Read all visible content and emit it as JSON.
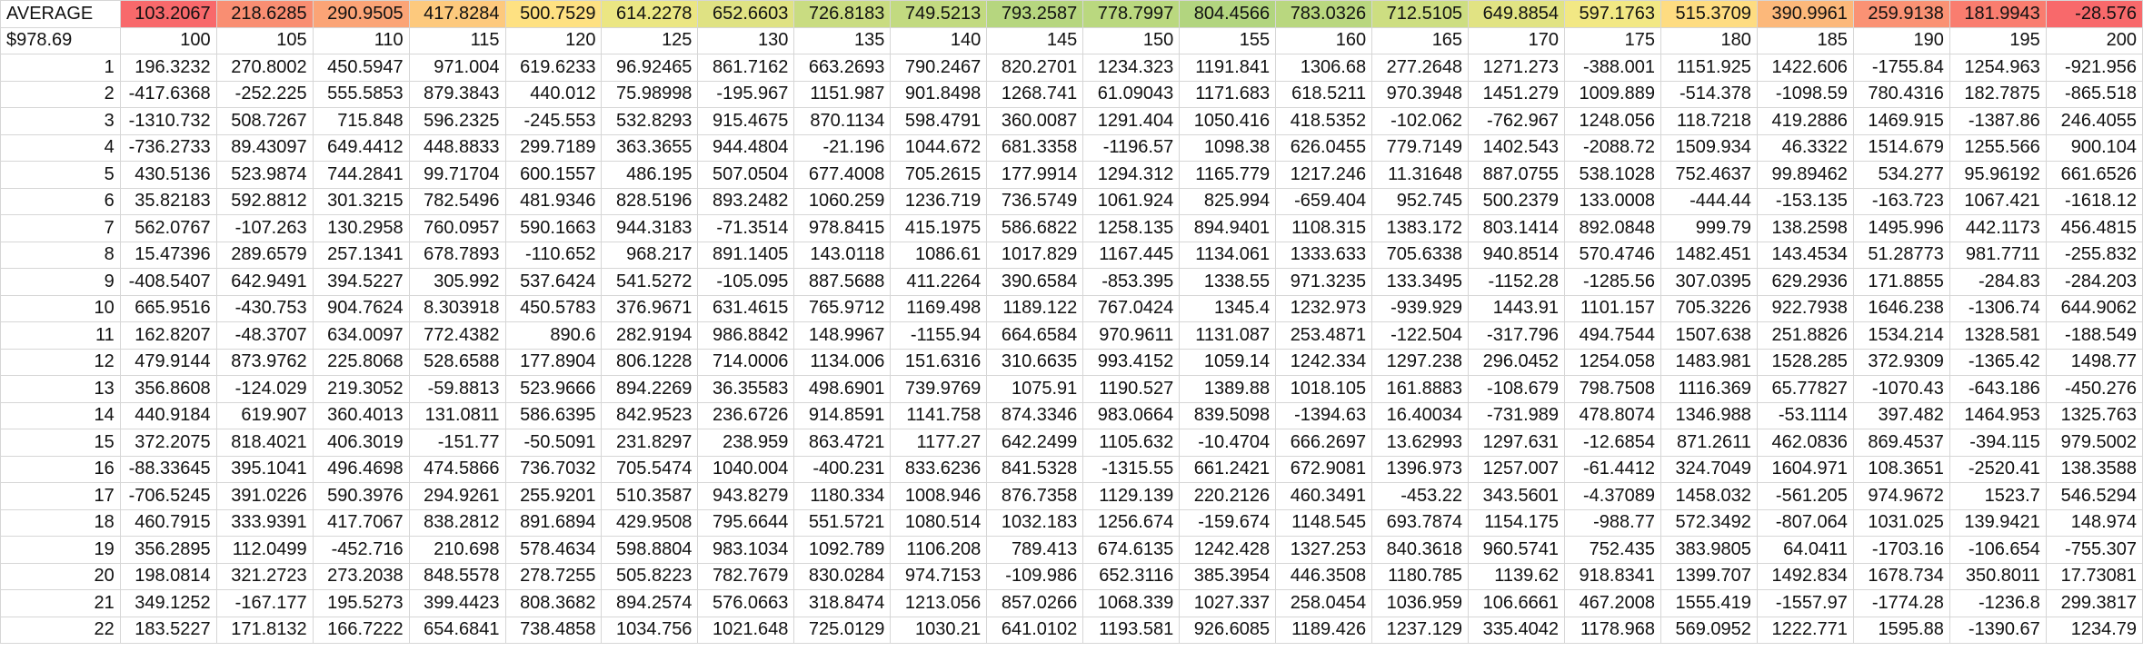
{
  "sheet": {
    "average_label": "AVERAGE",
    "average_values": [
      "103.2067",
      "218.6285",
      "290.9505",
      "417.8284",
      "500.7529",
      "614.2278",
      "652.6603",
      "726.8183",
      "749.5213",
      "793.2587",
      "778.7997",
      "804.4566",
      "783.0326",
      "712.5105",
      "649.8854",
      "597.1763",
      "515.3709",
      "390.9961",
      "259.9138",
      "181.9943",
      "-28.576"
    ],
    "average_colors": [
      "#f8696b",
      "#f98e72",
      "#fba476",
      "#fdc97d",
      "#fee182",
      "#ebe683",
      "#dfe283",
      "#c9dc81",
      "#c2da80",
      "#b6d67f",
      "#bad87f",
      "#b2d57f",
      "#b9d77f",
      "#cdde81",
      "#e1e383",
      "#f2e884",
      "#fedc81",
      "#fcb87a",
      "#fa9274",
      "#f97d6f",
      "#f8696b"
    ],
    "header_label": "$978.69",
    "header_values": [
      "100",
      "105",
      "110",
      "115",
      "120",
      "125",
      "130",
      "135",
      "140",
      "145",
      "150",
      "155",
      "160",
      "165",
      "170",
      "175",
      "180",
      "185",
      "190",
      "195",
      "200"
    ],
    "rows": [
      {
        "id": "1",
        "cells": [
          "196.3232",
          "270.8002",
          "450.5947",
          "971.004",
          "619.6233",
          "96.92465",
          "861.7162",
          "663.2693",
          "790.2467",
          "820.2701",
          "1234.323",
          "1191.841",
          "1306.68",
          "277.2648",
          "1271.273",
          "-388.001",
          "1151.925",
          "1422.606",
          "-1755.84",
          "1254.963",
          "-921.956"
        ]
      },
      {
        "id": "2",
        "cells": [
          "-417.6368",
          "-252.225",
          "555.5853",
          "879.3843",
          "440.012",
          "75.98998",
          "-195.967",
          "1151.987",
          "901.8498",
          "1268.741",
          "61.09043",
          "1171.683",
          "618.5211",
          "970.3948",
          "1451.279",
          "1009.889",
          "-514.378",
          "-1098.59",
          "780.4316",
          "182.7875",
          "-865.518"
        ]
      },
      {
        "id": "3",
        "cells": [
          "-1310.732",
          "508.7267",
          "715.848",
          "596.2325",
          "-245.553",
          "532.8293",
          "915.4675",
          "870.1134",
          "598.4791",
          "360.0087",
          "1291.404",
          "1050.416",
          "418.5352",
          "-102.062",
          "-762.967",
          "1248.056",
          "118.7218",
          "419.2886",
          "1469.915",
          "-1387.86",
          "246.4055"
        ]
      },
      {
        "id": "4",
        "cells": [
          "-736.2733",
          "89.43097",
          "649.4412",
          "448.8833",
          "299.7189",
          "363.3655",
          "944.4804",
          "-21.196",
          "1044.672",
          "681.3358",
          "-1196.57",
          "1098.38",
          "626.0455",
          "779.7149",
          "1402.543",
          "-2088.72",
          "1509.934",
          "46.3322",
          "1514.679",
          "1255.566",
          "900.104"
        ]
      },
      {
        "id": "5",
        "cells": [
          "430.5136",
          "523.9874",
          "744.2841",
          "99.71704",
          "600.1557",
          "486.195",
          "507.0504",
          "677.4008",
          "705.2615",
          "177.9914",
          "1294.312",
          "1165.779",
          "1217.246",
          "11.31648",
          "887.0755",
          "538.1028",
          "752.4637",
          "99.89462",
          "534.277",
          "95.96192",
          "661.6526"
        ]
      },
      {
        "id": "6",
        "cells": [
          "35.82183",
          "592.8812",
          "301.3215",
          "782.5496",
          "481.9346",
          "828.5196",
          "893.2482",
          "1060.259",
          "1236.719",
          "736.5749",
          "1061.924",
          "825.994",
          "-659.404",
          "952.745",
          "500.2379",
          "133.0008",
          "-444.44",
          "-153.135",
          "-163.723",
          "1067.421",
          "-1618.12"
        ]
      },
      {
        "id": "7",
        "cells": [
          "562.0767",
          "-107.263",
          "130.2958",
          "760.0957",
          "590.1663",
          "944.3183",
          "-71.3514",
          "978.8415",
          "415.1975",
          "586.6822",
          "1258.135",
          "894.9401",
          "1108.315",
          "1383.172",
          "803.1414",
          "892.0848",
          "999.79",
          "138.2598",
          "1495.996",
          "442.1173",
          "456.4815"
        ]
      },
      {
        "id": "8",
        "cells": [
          "15.47396",
          "289.6579",
          "257.1341",
          "678.7893",
          "-110.652",
          "968.217",
          "891.1405",
          "143.0118",
          "1086.61",
          "1017.829",
          "1167.445",
          "1134.061",
          "1333.633",
          "705.6338",
          "940.8514",
          "570.4746",
          "1482.451",
          "143.4534",
          "51.28773",
          "981.7711",
          "-255.832"
        ]
      },
      {
        "id": "9",
        "cells": [
          "-408.5407",
          "642.9491",
          "394.5227",
          "305.992",
          "537.6424",
          "541.5272",
          "-105.095",
          "887.5688",
          "411.2264",
          "390.6584",
          "-853.395",
          "1338.55",
          "971.3235",
          "133.3495",
          "-1152.28",
          "-1285.56",
          "307.0395",
          "629.2936",
          "171.8855",
          "-284.83",
          "-284.203"
        ]
      },
      {
        "id": "10",
        "cells": [
          "665.9516",
          "-430.753",
          "904.7624",
          "8.303918",
          "450.5783",
          "376.9671",
          "631.4615",
          "765.9712",
          "1169.498",
          "1189.122",
          "767.0424",
          "1345.4",
          "1232.973",
          "-939.929",
          "1443.91",
          "1101.157",
          "705.3226",
          "922.7938",
          "1646.238",
          "-1306.74",
          "644.9062"
        ]
      },
      {
        "id": "11",
        "cells": [
          "162.8207",
          "-48.3707",
          "634.0097",
          "772.4382",
          "890.6",
          "282.9194",
          "986.8842",
          "148.9967",
          "-1155.94",
          "664.6584",
          "970.9611",
          "1131.087",
          "253.4871",
          "-122.504",
          "-317.796",
          "494.7544",
          "1507.638",
          "251.8826",
          "1534.214",
          "1328.581",
          "-188.549"
        ]
      },
      {
        "id": "12",
        "cells": [
          "479.9144",
          "873.9762",
          "225.8068",
          "528.6588",
          "177.8904",
          "806.1228",
          "714.0006",
          "1134.006",
          "151.6316",
          "310.6635",
          "993.4152",
          "1059.14",
          "1242.334",
          "1297.238",
          "296.0452",
          "1254.058",
          "1483.981",
          "1528.285",
          "372.9309",
          "-1365.42",
          "1498.77"
        ]
      },
      {
        "id": "13",
        "cells": [
          "356.8608",
          "-124.029",
          "219.3052",
          "-59.8813",
          "523.9666",
          "894.2269",
          "36.35583",
          "498.6901",
          "739.9769",
          "1075.91",
          "1190.527",
          "1389.88",
          "1018.105",
          "161.8883",
          "-108.679",
          "798.7508",
          "1116.369",
          "65.77827",
          "-1070.43",
          "-643.186",
          "-450.276"
        ]
      },
      {
        "id": "14",
        "cells": [
          "440.9184",
          "619.907",
          "360.4013",
          "131.0811",
          "586.6395",
          "842.9523",
          "236.6726",
          "914.8591",
          "1141.758",
          "874.3346",
          "983.0664",
          "839.5098",
          "-1394.63",
          "16.40034",
          "-731.989",
          "478.8074",
          "1346.988",
          "-53.1114",
          "397.482",
          "1464.953",
          "1325.763"
        ]
      },
      {
        "id": "15",
        "cells": [
          "372.2075",
          "818.4021",
          "406.3019",
          "-151.77",
          "-50.5091",
          "231.8297",
          "238.959",
          "863.4721",
          "1177.27",
          "642.2499",
          "1105.632",
          "-10.4704",
          "666.2697",
          "13.62993",
          "1297.631",
          "-12.6854",
          "871.2611",
          "462.0836",
          "869.4537",
          "-394.115",
          "979.5002"
        ]
      },
      {
        "id": "16",
        "cells": [
          "-88.33645",
          "395.1041",
          "496.4698",
          "474.5866",
          "736.7032",
          "705.5474",
          "1040.004",
          "-400.231",
          "833.6236",
          "841.5328",
          "-1315.55",
          "661.2421",
          "672.9081",
          "1396.973",
          "1257.007",
          "-61.4412",
          "324.7049",
          "1604.971",
          "108.3651",
          "-2520.41",
          "138.3588"
        ]
      },
      {
        "id": "17",
        "cells": [
          "-706.5245",
          "391.0226",
          "590.3976",
          "294.9261",
          "255.9201",
          "510.3587",
          "943.8279",
          "1180.334",
          "1008.946",
          "876.7358",
          "1129.139",
          "220.2126",
          "460.3491",
          "-453.22",
          "343.5601",
          "-4.37089",
          "1458.032",
          "-561.205",
          "974.9672",
          "1523.7",
          "546.5294"
        ]
      },
      {
        "id": "18",
        "cells": [
          "460.7915",
          "333.9391",
          "417.7067",
          "838.2812",
          "891.6894",
          "429.9508",
          "795.6644",
          "551.5721",
          "1080.514",
          "1032.183",
          "1256.674",
          "-159.674",
          "1148.545",
          "693.7874",
          "1154.175",
          "-988.77",
          "572.3492",
          "-807.064",
          "1031.025",
          "139.9421",
          "148.974"
        ]
      },
      {
        "id": "19",
        "cells": [
          "356.2895",
          "112.0499",
          "-452.716",
          "210.698",
          "578.4634",
          "598.8804",
          "983.1034",
          "1092.789",
          "1106.208",
          "789.413",
          "674.6135",
          "1242.428",
          "1327.253",
          "840.3618",
          "960.5741",
          "752.435",
          "383.9805",
          "64.0411",
          "-1703.16",
          "-106.654",
          "-755.307"
        ]
      },
      {
        "id": "20",
        "cells": [
          "198.0814",
          "321.2723",
          "273.2038",
          "848.5578",
          "278.7255",
          "505.8223",
          "782.7679",
          "830.0284",
          "974.7153",
          "-109.986",
          "652.3116",
          "385.3954",
          "446.3508",
          "1180.785",
          "1139.62",
          "918.8341",
          "1399.707",
          "1492.834",
          "1678.734",
          "350.8011",
          "17.73081"
        ]
      },
      {
        "id": "21",
        "cells": [
          "349.1252",
          "-167.177",
          "195.5273",
          "399.4423",
          "808.3682",
          "894.2574",
          "576.0663",
          "318.8474",
          "1213.056",
          "857.0266",
          "1068.339",
          "1027.337",
          "258.0454",
          "1036.959",
          "106.6661",
          "467.2008",
          "1555.419",
          "-1557.97",
          "-1774.28",
          "-1236.8",
          "299.3817"
        ]
      },
      {
        "id": "22",
        "cells": [
          "183.5227",
          "171.8132",
          "166.7222",
          "654.6841",
          "738.4858",
          "1034.756",
          "1021.648",
          "725.0129",
          "1030.21",
          "641.0102",
          "1193.581",
          "926.6085",
          "1189.426",
          "1237.129",
          "335.4042",
          "1178.968",
          "569.0952",
          "1222.771",
          "1595.88",
          "-1390.67",
          "1234.79"
        ]
      }
    ]
  }
}
